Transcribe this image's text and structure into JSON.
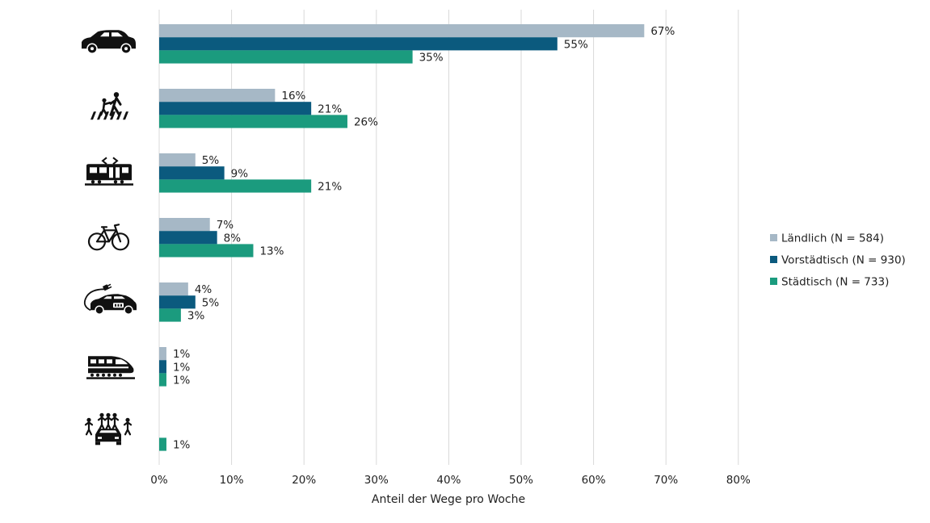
{
  "chart_data": {
    "type": "bar",
    "orientation": "horizontal",
    "categories": [
      "car-icon",
      "pedestrian-crossing-icon",
      "tram-icon",
      "bicycle-icon",
      "electric-car-icon",
      "train-icon",
      "carpool-icon"
    ],
    "series": [
      {
        "name": "Ländlich (N = 584)",
        "color": "#a6b8c6",
        "values": [
          67,
          16,
          5,
          7,
          4,
          1,
          null
        ]
      },
      {
        "name": "Vorstädtisch (N = 930)",
        "color": "#0b5a7e",
        "values": [
          55,
          21,
          9,
          8,
          5,
          1,
          null
        ]
      },
      {
        "name": "Städtisch (N = 733)",
        "color": "#1b9b7e",
        "values": [
          35,
          26,
          21,
          13,
          3,
          1,
          1
        ]
      }
    ],
    "xlabel": "Anteil der Wege pro Woche",
    "ylabel": "",
    "xlim": [
      0,
      80
    ],
    "xticks": [
      "0%",
      "10%",
      "20%",
      "30%",
      "40%",
      "50%",
      "60%",
      "70%",
      "80%"
    ],
    "value_suffix": "%",
    "grid": true,
    "legend_position": "right"
  }
}
